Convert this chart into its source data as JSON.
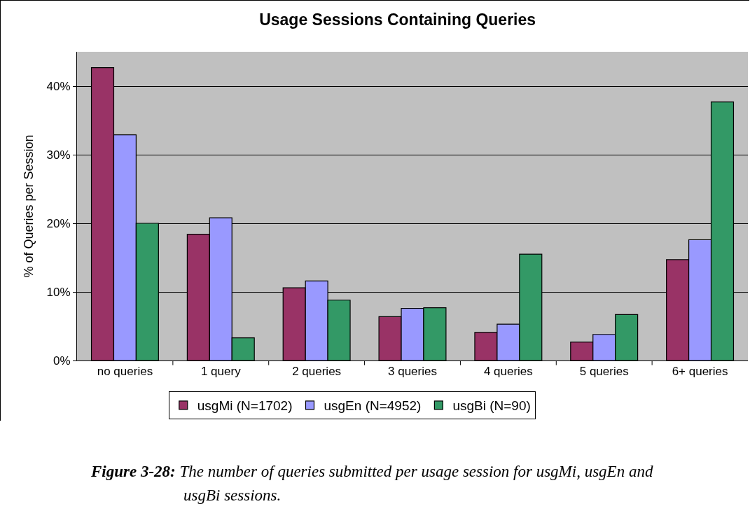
{
  "chart_data": {
    "type": "bar",
    "title": "Usage Sessions Containing Queries",
    "ylabel": "% of Queries per Session",
    "categories": [
      "no queries",
      "1 query",
      "2 queries",
      "3 queries",
      "4 queries",
      "5 queries",
      "6+ queries"
    ],
    "series": [
      {
        "name": "usgMi (N=1702)",
        "color": "#993366",
        "values": [
          42.7,
          18.4,
          10.6,
          6.4,
          4.1,
          2.7,
          14.7
        ]
      },
      {
        "name": "usgEn (N=4952)",
        "color": "#9999ff",
        "values": [
          32.9,
          20.8,
          11.6,
          7.6,
          5.3,
          3.8,
          17.6
        ]
      },
      {
        "name": "usgBi (N=90)",
        "color": "#339966",
        "values": [
          20.0,
          3.3,
          8.8,
          7.7,
          15.5,
          6.7,
          37.7
        ]
      }
    ],
    "ylim": [
      0,
      45
    ],
    "yticks": [
      {
        "value": 0,
        "label": "0%"
      },
      {
        "value": 10,
        "label": "10%"
      },
      {
        "value": 20,
        "label": "20%"
      },
      {
        "value": 30,
        "label": "30%"
      },
      {
        "value": 40,
        "label": "40%"
      }
    ],
    "grid": "y",
    "legend": "bottom",
    "annotations": [
      "Figure 3-28:",
      "The number of queries submitted per usage session for usgMi, usgEn and usgBi sessions."
    ]
  }
}
